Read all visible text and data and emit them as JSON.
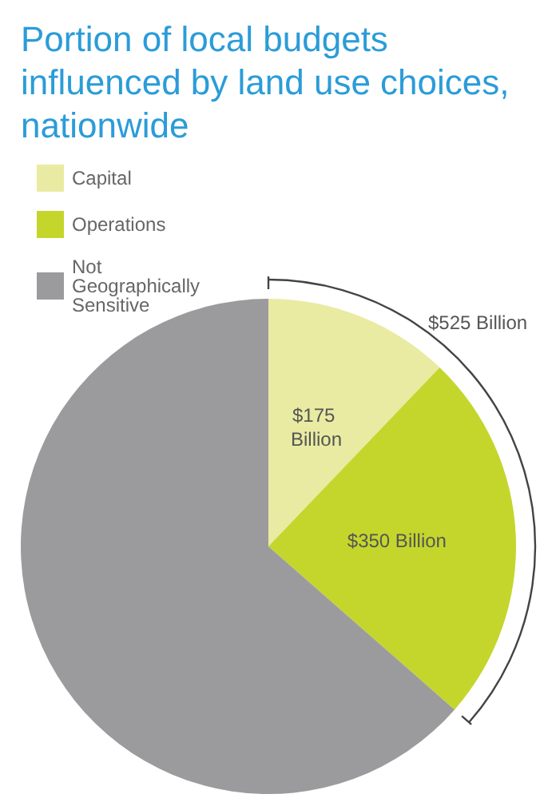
{
  "chart_data": {
    "type": "pie",
    "title": "Portion of local budgets influenced by land use choices, nationwide",
    "categories": [
      "Capital",
      "Operations",
      "Not Geographically Sensitive"
    ],
    "values": [
      175,
      350,
      915
    ],
    "colors": [
      "#e9eba2",
      "#c4d62c",
      "#9b9b9d"
    ],
    "value_labels": [
      "$175 Billion",
      "$350 Billion",
      null
    ],
    "annotations": [
      "$525 Billion"
    ],
    "legend": "top left"
  }
}
